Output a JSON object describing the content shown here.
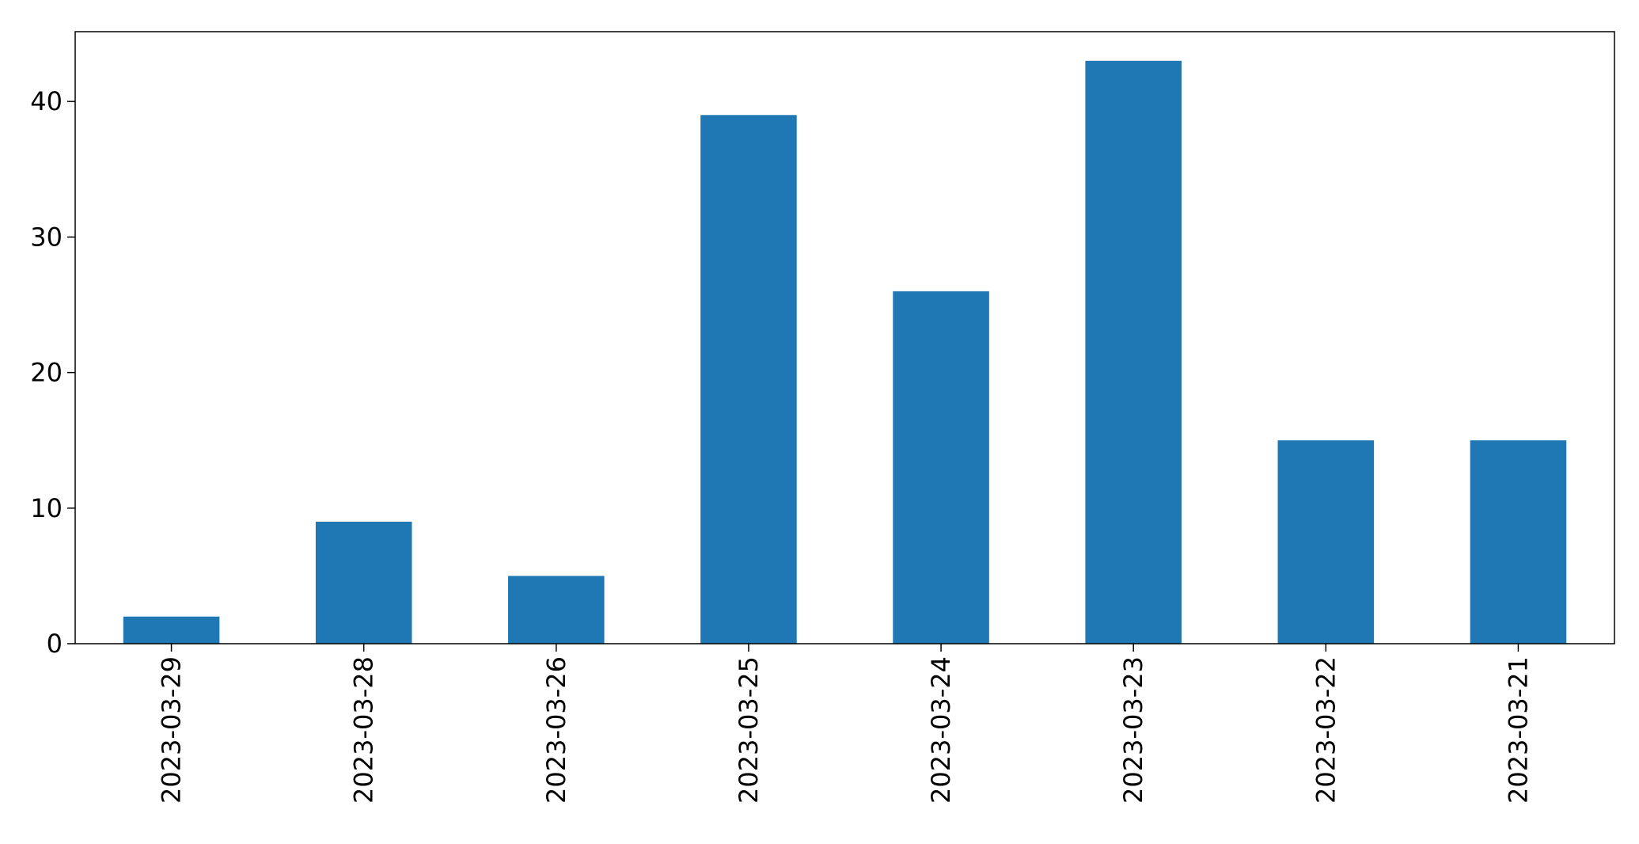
{
  "chart_data": {
    "type": "bar",
    "categories": [
      "2023-03-29",
      "2023-03-28",
      "2023-03-26",
      "2023-03-25",
      "2023-03-24",
      "2023-03-23",
      "2023-03-22",
      "2023-03-21"
    ],
    "values": [
      2,
      9,
      5,
      39,
      26,
      43,
      15,
      15
    ],
    "title": "",
    "xlabel": "",
    "ylabel": "",
    "ylim": [
      0,
      45.15
    ],
    "yticks": [
      0,
      10,
      20,
      30,
      40
    ],
    "grid": false,
    "legend": "none",
    "bar_color": "#1f77b4"
  }
}
